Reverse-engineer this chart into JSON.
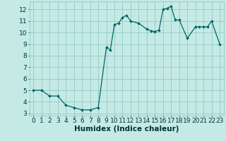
{
  "x": [
    0,
    1,
    2,
    3,
    4,
    5,
    6,
    7,
    8,
    9,
    9.5,
    10,
    10.5,
    11,
    11.5,
    12,
    13,
    14,
    14.5,
    15,
    15.5,
    16,
    16.5,
    17,
    17.5,
    18,
    19,
    20,
    20.5,
    21,
    21.5,
    22,
    23
  ],
  "y": [
    5.0,
    5.0,
    4.5,
    4.5,
    3.7,
    3.5,
    3.3,
    3.3,
    3.5,
    8.7,
    8.5,
    10.7,
    10.8,
    11.3,
    11.5,
    11.0,
    10.8,
    10.3,
    10.15,
    10.1,
    10.2,
    12.0,
    12.1,
    12.3,
    11.1,
    11.1,
    9.5,
    10.5,
    10.5,
    10.5,
    10.5,
    11.0,
    9.0
  ],
  "line_color": "#006666",
  "marker": "D",
  "marker_size": 2.0,
  "bg_color": "#c5eae6",
  "grid_color": "#88c4be",
  "xlabel": "Humidex (Indice chaleur)",
  "ylim": [
    2.8,
    12.7
  ],
  "xlim": [
    -0.5,
    23.5
  ],
  "yticks": [
    3,
    4,
    5,
    6,
    7,
    8,
    9,
    10,
    11,
    12
  ],
  "xticks": [
    0,
    1,
    2,
    3,
    4,
    5,
    6,
    7,
    8,
    9,
    10,
    11,
    12,
    13,
    14,
    15,
    16,
    17,
    18,
    19,
    20,
    21,
    22,
    23
  ],
  "tick_fontsize": 6.5,
  "xlabel_fontsize": 7.5,
  "label_color": "#003333"
}
